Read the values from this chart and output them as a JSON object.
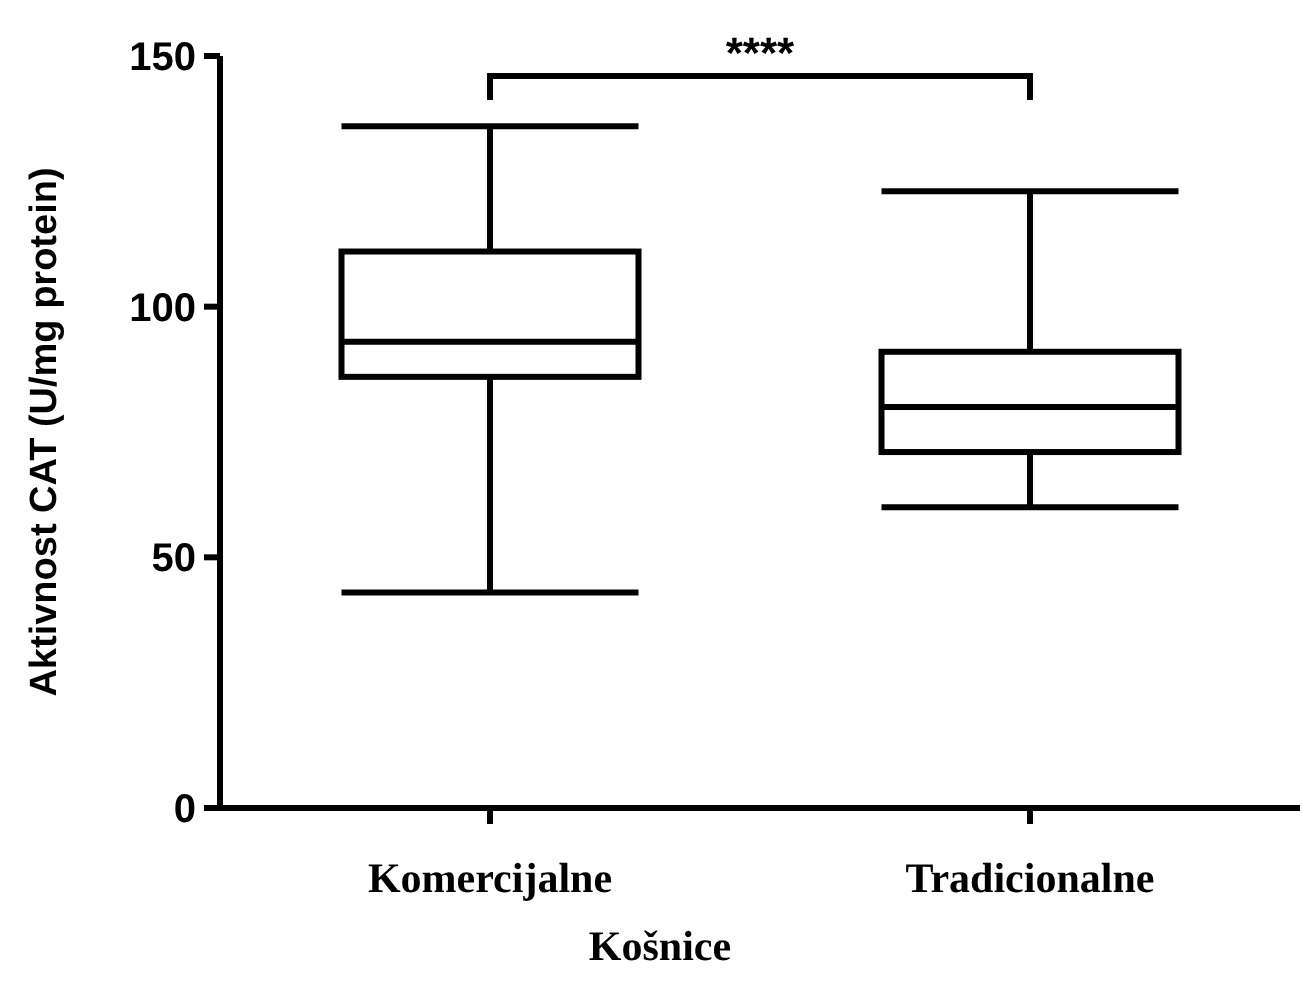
{
  "chart_data": {
    "type": "box",
    "xlabel": "Košnice",
    "ylabel": "Aktivnost  CAT (U/mg protein)",
    "categories": [
      "Komercijalne",
      "Tradicionalne"
    ],
    "boxes": [
      {
        "low": 43,
        "q1": 86,
        "median": 93,
        "q3": 111,
        "high": 136
      },
      {
        "low": 60,
        "q1": 71,
        "median": 80,
        "q3": 91,
        "high": 123
      }
    ],
    "ylim": [
      0,
      150
    ],
    "yticks": [
      0,
      50,
      100,
      150
    ],
    "grid": false,
    "annotations": [
      "****"
    ]
  }
}
